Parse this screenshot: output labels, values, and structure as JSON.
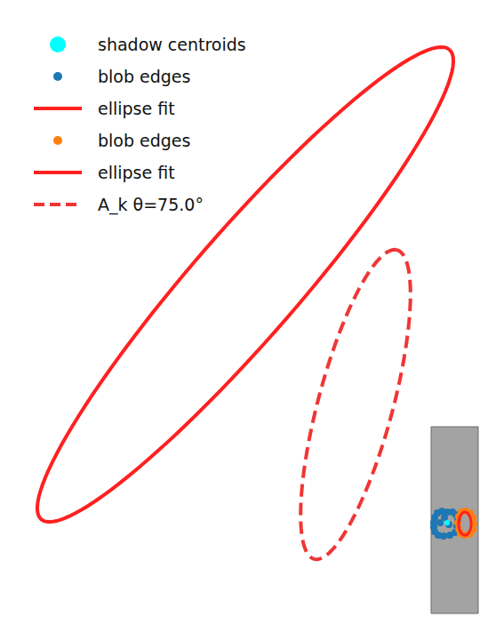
{
  "chart_data": {
    "type": "scatter",
    "xlim": [
      0,
      558
    ],
    "ylim": [
      0,
      712
    ],
    "tick_labels": false,
    "grid": false,
    "legend": "upper left",
    "image": {
      "extent": [
        485,
        538,
        22,
        232
      ]
    },
    "series": [
      {
        "name": "shadow centroids",
        "type": "scatter",
        "color": "#00ffff",
        "marker": "circle",
        "x": [
          503
        ],
        "y": [
          124
        ]
      },
      {
        "name": "blob edges",
        "type": "scatter",
        "color": "#1f77b4",
        "marker": "circle",
        "x": [
          488,
          489,
          492,
          497,
          503,
          509,
          513,
          515,
          514,
          512,
          506,
          499,
          493,
          489,
          488,
          495,
          505,
          500
        ],
        "y": [
          124,
          130,
          135,
          137,
          136,
          136,
          133,
          127,
          120,
          113,
          110,
          109,
          110,
          114,
          119,
          124,
          122,
          130
        ]
      },
      {
        "name": "ellipse fit",
        "type": "ellipse",
        "color": "#ff2020",
        "line_style": "solid",
        "center": [
          276,
          392
        ],
        "semi_axes": [
          350,
          60
        ],
        "angle": 49
      },
      {
        "name": "blob edges",
        "type": "scatter",
        "color": "#ff7f0e",
        "marker": "circle",
        "x": [
          515,
          516,
          519,
          524,
          529,
          532,
          533,
          532,
          528,
          523,
          518,
          516
        ],
        "y": [
          124,
          131,
          136,
          137,
          135,
          130,
          123,
          116,
          111,
          110,
          112,
          117
        ]
      },
      {
        "name": "ellipse fit",
        "type": "ellipse",
        "color": "#ff2020",
        "line_style": "solid",
        "center": [
          523,
          123
        ],
        "semi_axes": [
          13,
          7
        ],
        "angle": 90
      },
      {
        "name": "A_k θ=75.0°",
        "type": "ellipse",
        "color": "#f03535",
        "line_style": "dashed",
        "center": [
          400,
          257
        ],
        "semi_axes": [
          180,
          42
        ],
        "angle": 75
      }
    ]
  }
}
